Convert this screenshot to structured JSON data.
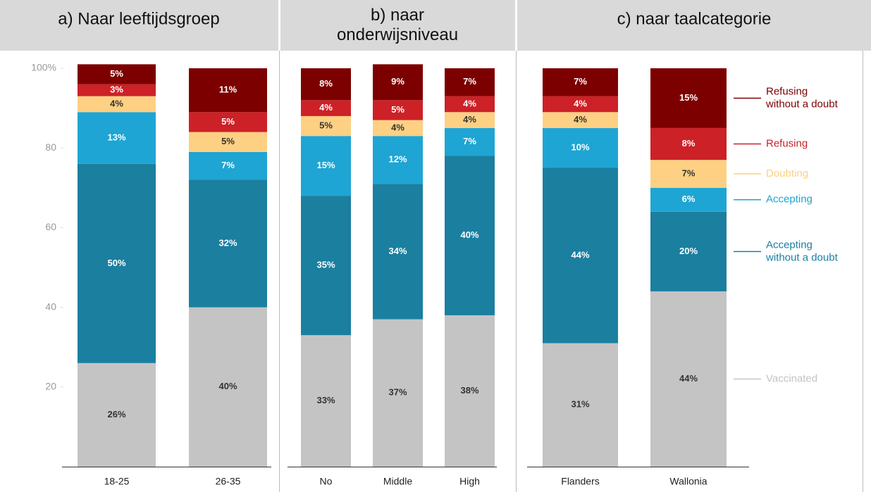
{
  "chart_data": [
    {
      "type": "bar",
      "stacked": true,
      "title": "a) Naar leeftijdsgroep",
      "categories": [
        "18-25",
        "26-35"
      ],
      "ylim": [
        0,
        100
      ],
      "yticks": [
        20,
        40,
        60,
        80,
        {
          "value": 100,
          "label": "100%"
        }
      ],
      "series": [
        {
          "color": "#c4c4c4",
          "values": [
            26,
            40
          ],
          "value_labels": [
            "26%",
            "40%"
          ]
        },
        {
          "color": "#1b7fa0",
          "values": [
            50,
            32
          ],
          "value_labels": [
            "50%",
            "32%"
          ]
        },
        {
          "color": "#1ea5d3",
          "values": [
            13,
            7
          ],
          "value_labels": [
            "13%",
            "7%"
          ]
        },
        {
          "color": "#fdd083",
          "values": [
            4,
            5
          ],
          "value_labels": [
            "4%",
            "5%"
          ]
        },
        {
          "color": "#cc2127",
          "values": [
            3,
            5
          ],
          "value_labels": [
            "3%",
            "5%"
          ]
        },
        {
          "color": "#7c0000",
          "values": [
            5,
            11
          ],
          "value_labels": [
            "5%",
            "11%"
          ]
        }
      ]
    },
    {
      "type": "bar",
      "stacked": true,
      "title": "b) naar onderwijsniveau",
      "categories": [
        "No",
        "Middle",
        "High"
      ],
      "ylim": [
        0,
        100
      ],
      "series": [
        {
          "color": "#c4c4c4",
          "values": [
            33,
            37,
            38
          ],
          "value_labels": [
            "33%",
            "37%",
            "38%"
          ]
        },
        {
          "color": "#1b7fa0",
          "values": [
            35,
            34,
            40
          ],
          "value_labels": [
            "35%",
            "34%",
            "40%"
          ]
        },
        {
          "color": "#1ea5d3",
          "values": [
            15,
            12,
            7
          ],
          "value_labels": [
            "15%",
            "12%",
            "7%"
          ]
        },
        {
          "color": "#fdd083",
          "values": [
            5,
            4,
            4
          ],
          "value_labels": [
            "5%",
            "4%",
            "4%"
          ]
        },
        {
          "color": "#cc2127",
          "values": [
            4,
            5,
            4
          ],
          "value_labels": [
            "4%",
            "5%",
            "4%"
          ]
        },
        {
          "color": "#7c0000",
          "values": [
            8,
            9,
            7
          ],
          "value_labels": [
            "8%",
            "9%",
            "7%"
          ]
        }
      ]
    },
    {
      "type": "bar",
      "stacked": true,
      "title": "c) naar taalcategorie",
      "categories": [
        "Flanders",
        "Wallonia"
      ],
      "ylim": [
        0,
        100
      ],
      "series": [
        {
          "name": "Vaccinated",
          "color": "#c4c4c4",
          "values": [
            31,
            44
          ],
          "value_labels": [
            "31%",
            "44%"
          ]
        },
        {
          "name": "Accepting without a doubt",
          "color": "#1b7fa0",
          "values": [
            44,
            20
          ],
          "value_labels": [
            "44%",
            "20%"
          ]
        },
        {
          "name": "Accepting",
          "color": "#1ea5d3",
          "values": [
            10,
            6
          ],
          "value_labels": [
            "10%",
            "6%"
          ]
        },
        {
          "name": "Doubting",
          "color": "#fdd083",
          "values": [
            4,
            7
          ],
          "value_labels": [
            "4%",
            "7%"
          ]
        },
        {
          "name": "Refusing",
          "color": "#cc2127",
          "values": [
            4,
            8
          ],
          "value_labels": [
            "4%",
            "8%"
          ]
        },
        {
          "name": "Refusing without a doubt",
          "color": "#7c0000",
          "values": [
            7,
            15
          ],
          "value_labels": [
            "7%",
            "15%"
          ]
        }
      ]
    }
  ]
}
